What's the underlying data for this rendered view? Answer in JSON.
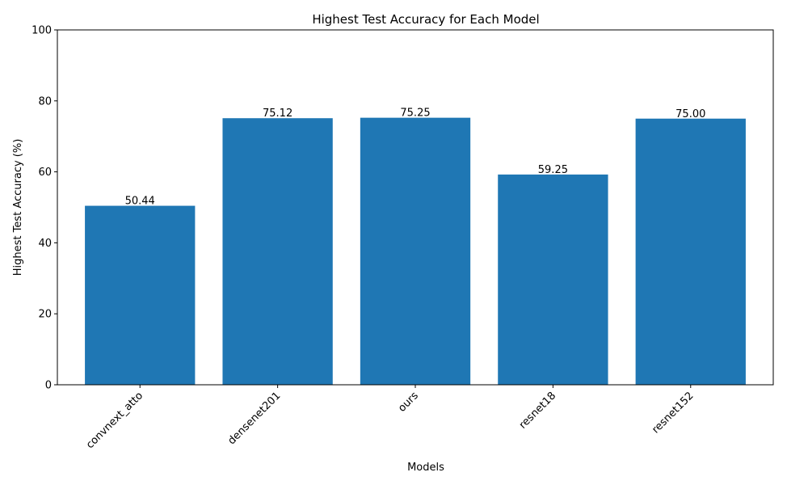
{
  "chart_data": {
    "type": "bar",
    "title": "Highest Test Accuracy for Each Model",
    "xlabel": "Models",
    "ylabel": "Highest Test Accuracy (%)",
    "categories": [
      "convnext_atto",
      "densenet201",
      "ours",
      "resnet18",
      "resnet152"
    ],
    "values": [
      50.44,
      75.12,
      75.25,
      59.25,
      75.0
    ],
    "data_labels": [
      "50.44",
      "75.12",
      "75.25",
      "59.25",
      "75.00"
    ],
    "ylim": [
      0,
      100
    ],
    "yticks": [
      0,
      20,
      40,
      60,
      80,
      100
    ],
    "bar_color": "#1f77b4",
    "grid": false,
    "legend": "none"
  }
}
